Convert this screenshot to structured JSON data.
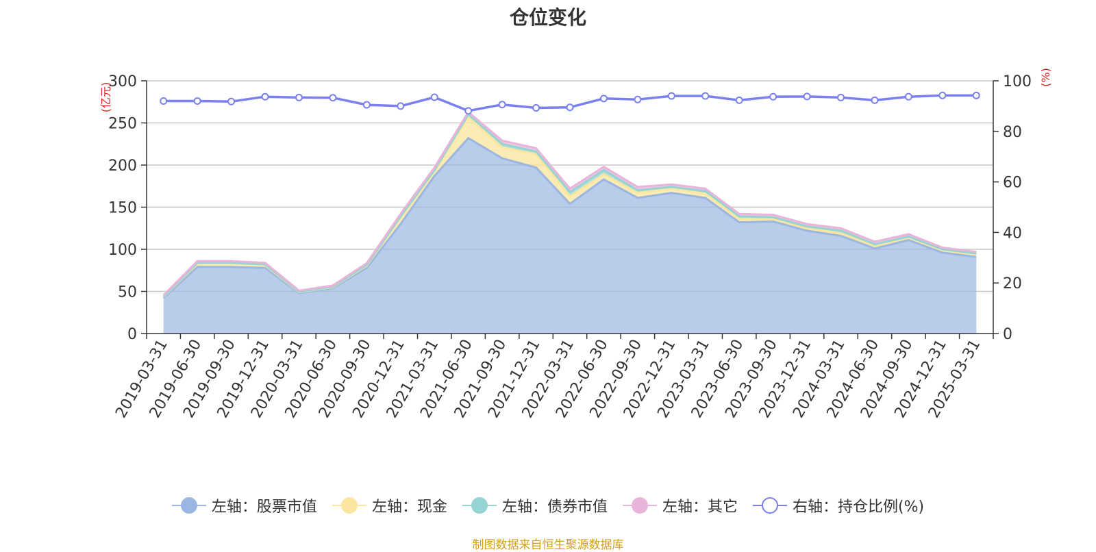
{
  "title": "仓位变化",
  "source_note": "制图数据来自恒生聚源数据库",
  "chart_data": {
    "type": "area",
    "title": "仓位变化",
    "x": [
      "2019-03-31",
      "2019-06-30",
      "2019-09-30",
      "2019-12-31",
      "2020-03-31",
      "2020-06-30",
      "2020-09-30",
      "2020-12-31",
      "2021-03-31",
      "2021-06-30",
      "2021-09-30",
      "2021-12-31",
      "2022-03-31",
      "2022-06-30",
      "2022-09-30",
      "2022-12-31",
      "2023-03-31",
      "2023-06-30",
      "2023-09-30",
      "2023-12-31",
      "2024-03-31",
      "2024-06-30",
      "2024-09-30",
      "2024-12-31",
      "2025-03-31"
    ],
    "y_left": {
      "unit": "(亿元)",
      "ylim": [
        0,
        300
      ],
      "ticks": [
        0,
        50,
        100,
        150,
        200,
        250,
        300
      ]
    },
    "y_right": {
      "unit": "(%)",
      "ylim": [
        0,
        100
      ],
      "ticks": [
        0,
        20,
        40,
        60,
        80,
        100
      ]
    },
    "grid": true,
    "legend_position": "bottom",
    "series": [
      {
        "name": "左轴：股票市值",
        "axis": "left",
        "stack": "total",
        "color": "#9bb6e0",
        "values": [
          42,
          79,
          79,
          78,
          48,
          54,
          78,
          130,
          187,
          232,
          208,
          197,
          154,
          183,
          161,
          167,
          161,
          132,
          133,
          122,
          116,
          101,
          111,
          96,
          91
        ]
      },
      {
        "name": "左轴：现金",
        "axis": "left",
        "stack": "total",
        "color": "#fae69e",
        "values": [
          1.5,
          4,
          4,
          3,
          1,
          1,
          2.5,
          7,
          5,
          25,
          13,
          16,
          9,
          6,
          6,
          5,
          5,
          4,
          3,
          3,
          3,
          3,
          3,
          3,
          3
        ]
      },
      {
        "name": "左轴：债券市值",
        "axis": "left",
        "stack": "total",
        "color": "#96d3d3",
        "values": [
          0.5,
          1,
          1,
          1,
          0.5,
          0.5,
          1,
          2,
          2,
          3,
          4,
          3,
          5,
          5,
          3,
          2,
          3,
          3,
          2,
          2,
          3,
          2,
          1,
          1,
          1
        ]
      },
      {
        "name": "左轴：其它",
        "axis": "left",
        "stack": "total",
        "color": "#e8b4da",
        "values": [
          1.5,
          2,
          2,
          2,
          1.5,
          1.5,
          2,
          3,
          3,
          3,
          4,
          4,
          4,
          4,
          4,
          3,
          3,
          3,
          3,
          3,
          3,
          3,
          3,
          2,
          2
        ]
      },
      {
        "name": "右轴：持仓比例(%)",
        "axis": "right",
        "type": "line",
        "color": "#7a80ee",
        "values": [
          92,
          92,
          91.8,
          93.7,
          93.4,
          93.3,
          90.5,
          90,
          93.5,
          88.1,
          90.6,
          89.3,
          89.5,
          93,
          92.6,
          94,
          94,
          92.3,
          93.7,
          93.8,
          93.4,
          92.3,
          93.7,
          94.2,
          94.2
        ]
      }
    ]
  }
}
